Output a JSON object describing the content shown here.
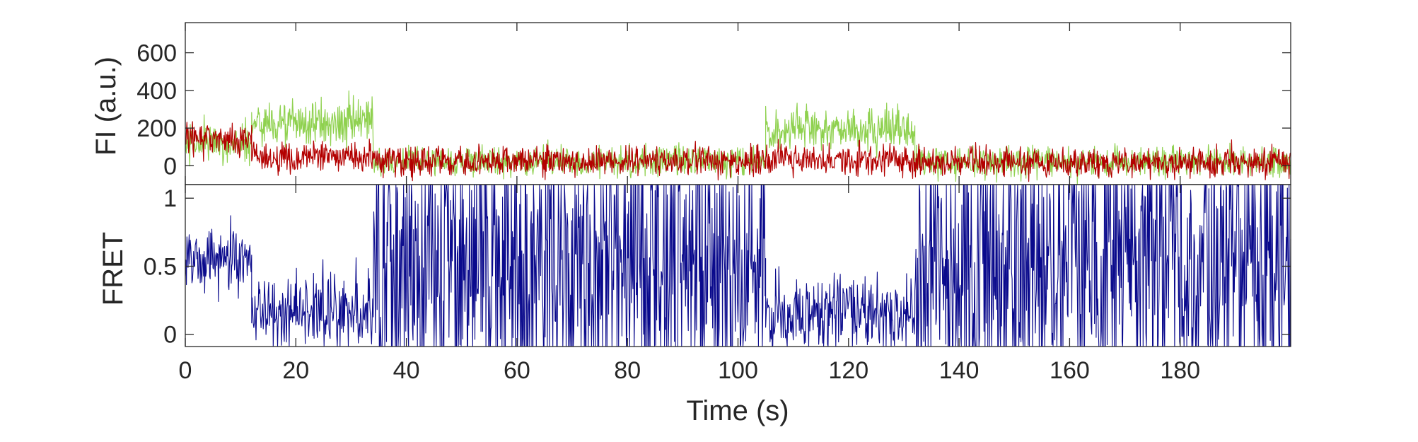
{
  "chart_data": [
    {
      "type": "line",
      "name": "fluorescence-panel",
      "ylabel": "FI (a.u.)",
      "xlabel": "",
      "xlim": [
        0,
        200
      ],
      "ylim": [
        -100,
        760
      ],
      "yticks": [
        0,
        200,
        400,
        600
      ],
      "ytick_labels": [
        "0",
        "200",
        "400",
        "600"
      ],
      "grid": false,
      "colors": {
        "donor": "#8fd14f",
        "acceptor": "#b30000"
      },
      "series": [
        {
          "key": "donor",
          "color": "#8fd14f",
          "segments": [
            {
              "x": [
                0,
                12
              ],
              "mean": 120,
              "noise": 55
            },
            {
              "x": [
                12,
                34
              ],
              "mean": 225,
              "noise": 60
            },
            {
              "x": [
                34,
                105
              ],
              "mean": 25,
              "noise": 40
            },
            {
              "x": [
                105,
                132
              ],
              "mean": 190,
              "noise": 60
            },
            {
              "x": [
                132,
                200
              ],
              "mean": 20,
              "noise": 40
            }
          ]
        },
        {
          "key": "acceptor",
          "color": "#b30000",
          "segments": [
            {
              "x": [
                0,
                12
              ],
              "mean": 140,
              "noise": 45
            },
            {
              "x": [
                12,
                34
              ],
              "mean": 45,
              "noise": 40
            },
            {
              "x": [
                34,
                105
              ],
              "mean": 25,
              "noise": 40
            },
            {
              "x": [
                105,
                132
              ],
              "mean": 35,
              "noise": 40
            },
            {
              "x": [
                132,
                200
              ],
              "mean": 20,
              "noise": 40
            }
          ]
        }
      ]
    },
    {
      "type": "line",
      "name": "fret-panel",
      "ylabel": "FRET",
      "xlabel": "Time (s)",
      "xlim": [
        0,
        200
      ],
      "ylim": [
        -0.09,
        1.1
      ],
      "yticks": [
        0,
        0.5,
        1
      ],
      "ytick_labels": [
        "0",
        "0.5",
        "1"
      ],
      "xticks": [
        0,
        20,
        40,
        60,
        80,
        100,
        120,
        140,
        160,
        180
      ],
      "xtick_labels": [
        "0",
        "20",
        "40",
        "60",
        "80",
        "100",
        "120",
        "140",
        "160",
        "180"
      ],
      "grid": false,
      "colors": {
        "fret": "#0a0a8c"
      },
      "series": [
        {
          "key": "fret",
          "color": "#0a0a8c",
          "segments": [
            {
              "x": [
                0,
                12
              ],
              "mean": 0.55,
              "noise": 0.12
            },
            {
              "x": [
                12,
                34
              ],
              "mean": 0.17,
              "noise": 0.14
            },
            {
              "x": [
                34,
                105
              ],
              "mean": 0.5,
              "noise": 0.45
            },
            {
              "x": [
                105,
                132
              ],
              "mean": 0.15,
              "noise": 0.14
            },
            {
              "x": [
                132,
                200
              ],
              "mean": 0.5,
              "noise": 0.45
            }
          ]
        }
      ]
    }
  ]
}
